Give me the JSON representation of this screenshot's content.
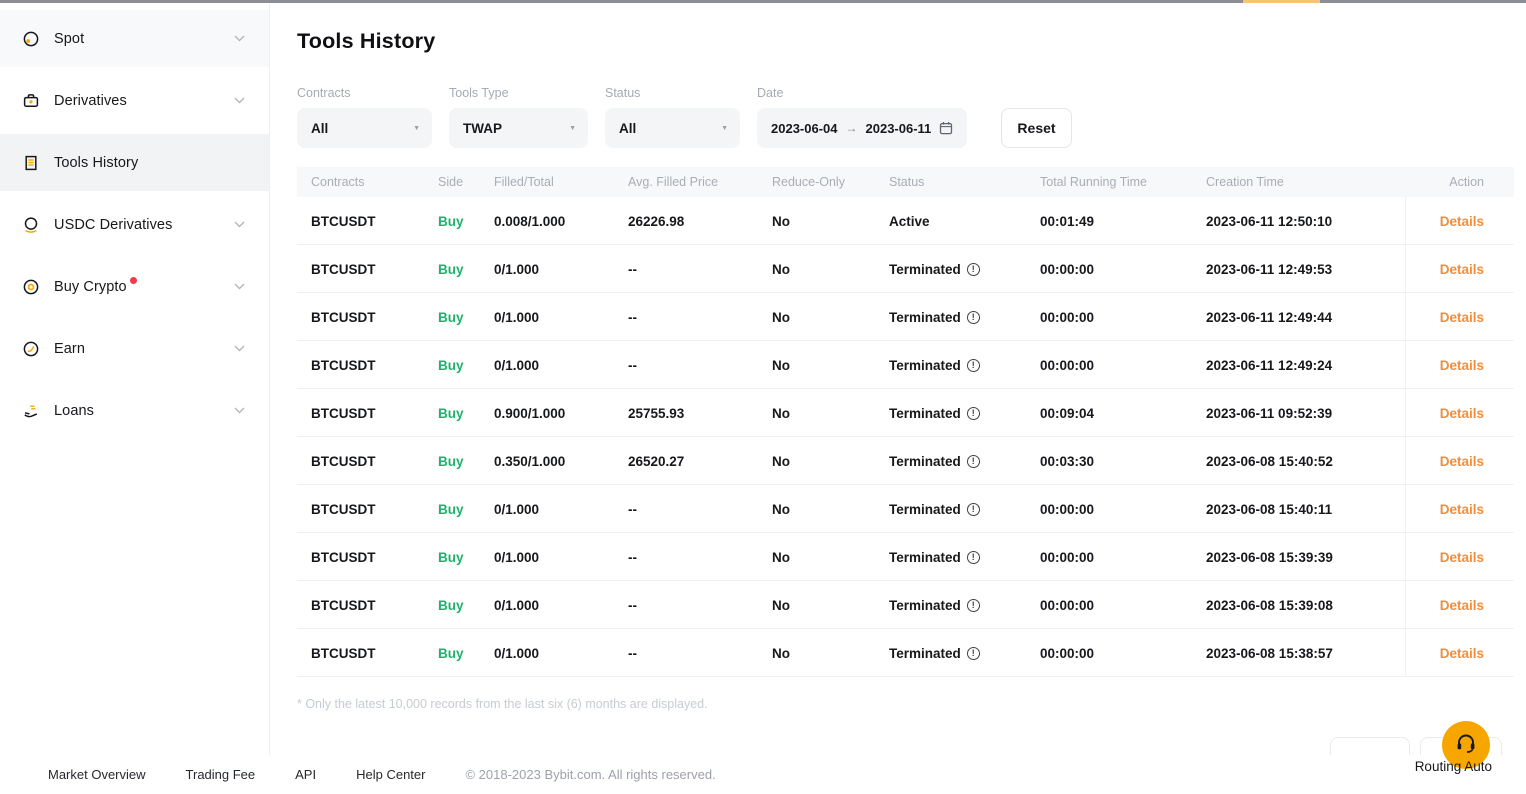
{
  "header": {
    "title": "Tools History"
  },
  "sidebar": {
    "items": [
      {
        "label": "Spot",
        "icon": "spot-icon",
        "expandable": true,
        "active": false
      },
      {
        "label": "Derivatives",
        "icon": "derivatives-icon",
        "expandable": true,
        "active": false
      },
      {
        "label": "Tools History",
        "icon": "tools-history-icon",
        "expandable": false,
        "active": true
      },
      {
        "label": "USDC Derivatives",
        "icon": "usdc-derivatives-icon",
        "expandable": true,
        "active": false
      },
      {
        "label": "Buy Crypto",
        "icon": "buy-crypto-icon",
        "expandable": true,
        "active": false,
        "badge": true
      },
      {
        "label": "Earn",
        "icon": "earn-icon",
        "expandable": true,
        "active": false
      },
      {
        "label": "Loans",
        "icon": "loans-icon",
        "expandable": true,
        "active": false
      }
    ]
  },
  "filters": {
    "contracts": {
      "label": "Contracts",
      "value": "All"
    },
    "tools_type": {
      "label": "Tools Type",
      "value": "TWAP"
    },
    "status": {
      "label": "Status",
      "value": "All"
    },
    "date": {
      "label": "Date",
      "start": "2023-06-04",
      "arrow": "→",
      "end": "2023-06-11"
    },
    "reset_label": "Reset"
  },
  "table": {
    "columns": [
      "Contracts",
      "Side",
      "Filled/Total",
      "Avg. Filled Price",
      "Reduce-Only",
      "Status",
      "Total Running Time",
      "Creation Time",
      "Action"
    ],
    "rows": [
      {
        "contracts": "BTCUSDT",
        "side": "Buy",
        "filled_total": "0.008/1.000",
        "avg_filled_price": "26226.98",
        "reduce_only": "No",
        "status": "Active",
        "status_info": false,
        "total_running_time": "00:01:49",
        "creation_time": "2023-06-11 12:50:10",
        "action": "Details"
      },
      {
        "contracts": "BTCUSDT",
        "side": "Buy",
        "filled_total": "0/1.000",
        "avg_filled_price": "--",
        "reduce_only": "No",
        "status": "Terminated",
        "status_info": true,
        "total_running_time": "00:00:00",
        "creation_time": "2023-06-11 12:49:53",
        "action": "Details"
      },
      {
        "contracts": "BTCUSDT",
        "side": "Buy",
        "filled_total": "0/1.000",
        "avg_filled_price": "--",
        "reduce_only": "No",
        "status": "Terminated",
        "status_info": true,
        "total_running_time": "00:00:00",
        "creation_time": "2023-06-11 12:49:44",
        "action": "Details"
      },
      {
        "contracts": "BTCUSDT",
        "side": "Buy",
        "filled_total": "0/1.000",
        "avg_filled_price": "--",
        "reduce_only": "No",
        "status": "Terminated",
        "status_info": true,
        "total_running_time": "00:00:00",
        "creation_time": "2023-06-11 12:49:24",
        "action": "Details"
      },
      {
        "contracts": "BTCUSDT",
        "side": "Buy",
        "filled_total": "0.900/1.000",
        "avg_filled_price": "25755.93",
        "reduce_only": "No",
        "status": "Terminated",
        "status_info": true,
        "total_running_time": "00:09:04",
        "creation_time": "2023-06-11 09:52:39",
        "action": "Details"
      },
      {
        "contracts": "BTCUSDT",
        "side": "Buy",
        "filled_total": "0.350/1.000",
        "avg_filled_price": "26520.27",
        "reduce_only": "No",
        "status": "Terminated",
        "status_info": true,
        "total_running_time": "00:03:30",
        "creation_time": "2023-06-08 15:40:52",
        "action": "Details"
      },
      {
        "contracts": "BTCUSDT",
        "side": "Buy",
        "filled_total": "0/1.000",
        "avg_filled_price": "--",
        "reduce_only": "No",
        "status": "Terminated",
        "status_info": true,
        "total_running_time": "00:00:00",
        "creation_time": "2023-06-08 15:40:11",
        "action": "Details"
      },
      {
        "contracts": "BTCUSDT",
        "side": "Buy",
        "filled_total": "0/1.000",
        "avg_filled_price": "--",
        "reduce_only": "No",
        "status": "Terminated",
        "status_info": true,
        "total_running_time": "00:00:00",
        "creation_time": "2023-06-08 15:39:39",
        "action": "Details"
      },
      {
        "contracts": "BTCUSDT",
        "side": "Buy",
        "filled_total": "0/1.000",
        "avg_filled_price": "--",
        "reduce_only": "No",
        "status": "Terminated",
        "status_info": true,
        "total_running_time": "00:00:00",
        "creation_time": "2023-06-08 15:39:08",
        "action": "Details"
      },
      {
        "contracts": "BTCUSDT",
        "side": "Buy",
        "filled_total": "0/1.000",
        "avg_filled_price": "--",
        "reduce_only": "No",
        "status": "Terminated",
        "status_info": true,
        "total_running_time": "00:00:00",
        "creation_time": "2023-06-08 15:38:57",
        "action": "Details"
      }
    ],
    "footnote": "* Only the latest 10,000 records from the last six (6) months are displayed."
  },
  "footer": {
    "links": [
      "Market Overview",
      "Trading Fee",
      "API",
      "Help Center"
    ],
    "copyright": "© 2018-2023 Bybit.com. All rights reserved."
  },
  "support": {
    "routing_label": "Routing Auto"
  },
  "colors": {
    "accent": "#f7a600",
    "buy_green": "#20b26c",
    "details_orange": "#ee8f3f",
    "badge_red": "#f03b4c"
  }
}
